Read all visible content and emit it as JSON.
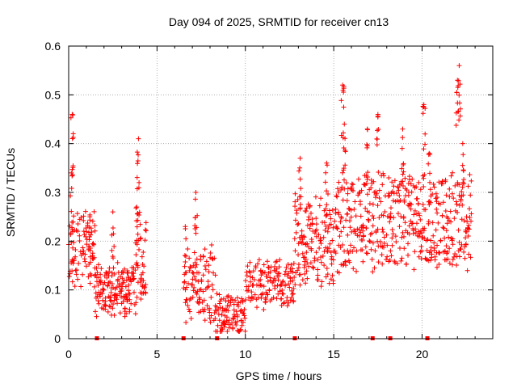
{
  "chart_data": {
    "type": "scatter",
    "title": "Day 094 of 2025, SRMTID for receiver cn13",
    "xlabel": "GPS time / hours",
    "ylabel": "SRMTID / TECUs",
    "xlim": [
      0,
      24
    ],
    "ylim": [
      0,
      0.6
    ],
    "xticks": [
      0,
      5,
      10,
      15,
      20
    ],
    "xtick_labels": [
      "0",
      "5",
      "10",
      "15",
      "20"
    ],
    "yticks": [
      0,
      0.1,
      0.2,
      0.3,
      0.4,
      0.5,
      0.6
    ],
    "ytick_labels": [
      "0",
      "0.1",
      "0.2",
      "0.3",
      "0.4",
      "0.5",
      "0.6"
    ],
    "grid": true,
    "marker": "plus",
    "color": "#ff0000",
    "series": [
      {
        "name": "SRMTID",
        "segments": [
          {
            "x_start": 0.0,
            "x_end": 1.5,
            "step": 0.0333,
            "base": 0.18,
            "amp": 0.12
          },
          {
            "x_start": 1.5,
            "x_end": 3.8,
            "step": 0.0333,
            "base": 0.1,
            "amp": 0.08
          },
          {
            "x_start": 3.8,
            "x_end": 4.4,
            "step": 0.0333,
            "base": 0.17,
            "amp": 0.15
          },
          {
            "x_start": 6.5,
            "x_end": 8.3,
            "step": 0.0333,
            "base": 0.11,
            "amp": 0.12
          },
          {
            "x_start": 8.3,
            "x_end": 10.0,
            "step": 0.0333,
            "base": 0.05,
            "amp": 0.06
          },
          {
            "x_start": 10.0,
            "x_end": 12.8,
            "step": 0.0333,
            "base": 0.11,
            "amp": 0.07
          },
          {
            "x_start": 12.8,
            "x_end": 15.0,
            "step": 0.0333,
            "base": 0.2,
            "amp": 0.14
          },
          {
            "x_start": 15.0,
            "x_end": 19.0,
            "step": 0.0333,
            "base": 0.24,
            "amp": 0.16
          },
          {
            "x_start": 19.0,
            "x_end": 22.8,
            "step": 0.0333,
            "base": 0.24,
            "amp": 0.15
          }
        ],
        "peaks": [
          {
            "x": 0.2,
            "y": 0.46
          },
          {
            "x": 0.15,
            "y": 0.34
          },
          {
            "x": 1.2,
            "y": 0.25
          },
          {
            "x": 2.5,
            "y": 0.26
          },
          {
            "x": 3.95,
            "y": 0.41
          },
          {
            "x": 3.85,
            "y": 0.27
          },
          {
            "x": 7.2,
            "y": 0.3
          },
          {
            "x": 6.6,
            "y": 0.23
          },
          {
            "x": 13.1,
            "y": 0.37
          },
          {
            "x": 14.6,
            "y": 0.36
          },
          {
            "x": 15.5,
            "y": 0.52
          },
          {
            "x": 15.6,
            "y": 0.44
          },
          {
            "x": 16.9,
            "y": 0.43
          },
          {
            "x": 17.5,
            "y": 0.46
          },
          {
            "x": 18.9,
            "y": 0.43
          },
          {
            "x": 20.1,
            "y": 0.48
          },
          {
            "x": 20.4,
            "y": 0.38
          },
          {
            "x": 22.1,
            "y": 0.56
          },
          {
            "x": 22.0,
            "y": 0.53
          },
          {
            "x": 22.3,
            "y": 0.4
          }
        ]
      }
    ],
    "zero_markers_x": [
      1.6,
      6.5,
      8.4,
      12.8,
      17.2,
      18.2,
      20.3
    ]
  }
}
